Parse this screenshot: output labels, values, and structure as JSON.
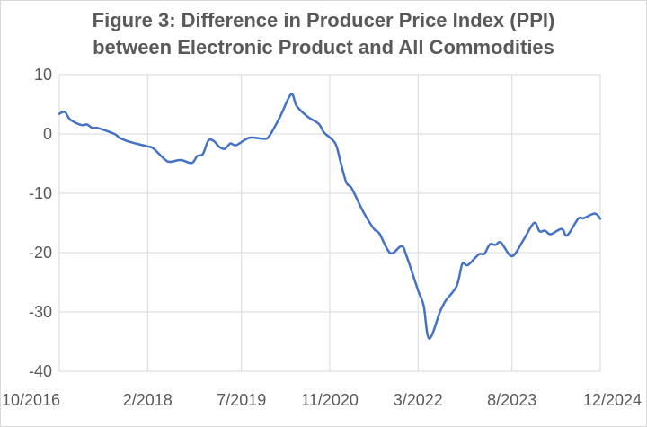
{
  "chart_data": {
    "type": "line",
    "title_lines": [
      "Figure 3: Difference in Producer Price Index (PPI)",
      "between Electronic Product and All Commodities"
    ],
    "xlabel": "",
    "ylabel": "",
    "ylim": [
      -40,
      10
    ],
    "yticks": [
      10,
      0,
      -10,
      -20,
      -30,
      -40
    ],
    "xticks": [
      {
        "date": "2016-10",
        "label": "10/2016"
      },
      {
        "date": "2018-02",
        "label": "2/2018"
      },
      {
        "date": "2019-07",
        "label": "7/2019"
      },
      {
        "date": "2020-11",
        "label": "11/2020"
      },
      {
        "date": "2022-03",
        "label": "3/2022"
      },
      {
        "date": "2023-08",
        "label": "8/2023"
      },
      {
        "date": "2024-12",
        "label": "12/2024"
      }
    ],
    "xlim": [
      "2016-10",
      "2024-12"
    ],
    "grid": true,
    "legend": "none",
    "line_color": "#4472C4",
    "series": [
      {
        "x": [
          "2016-10",
          "2016-11",
          "2016-12",
          "2017-02",
          "2017-03",
          "2017-04",
          "2017-05",
          "2017-08",
          "2017-09",
          "2017-11",
          "2018-02",
          "2018-03",
          "2018-05",
          "2018-06",
          "2018-08",
          "2018-10",
          "2018-11",
          "2018-12",
          "2019-01",
          "2019-02",
          "2019-03",
          "2019-04",
          "2019-05",
          "2019-06",
          "2019-08",
          "2019-09",
          "2019-11",
          "2019-12",
          "2020-02",
          "2020-04",
          "2020-05",
          "2020-07",
          "2020-09",
          "2020-10",
          "2020-12",
          "2021-01",
          "2021-02",
          "2021-03",
          "2021-05",
          "2021-07",
          "2021-08",
          "2021-10",
          "2021-12",
          "2022-01",
          "2022-03",
          "2022-04",
          "2022-05",
          "2022-07",
          "2022-08",
          "2022-10",
          "2022-11",
          "2022-12",
          "2023-02",
          "2023-03",
          "2023-04",
          "2023-05",
          "2023-06",
          "2023-08",
          "2023-10",
          "2023-12",
          "2024-01",
          "2024-02",
          "2024-03",
          "2024-05",
          "2024-06",
          "2024-08",
          "2024-09",
          "2024-11",
          "2024-12"
        ],
        "y": [
          3.4,
          3.7,
          2.4,
          1.5,
          1.6,
          1.0,
          1.0,
          0.0,
          -0.7,
          -1.4,
          -2.1,
          -2.4,
          -4.2,
          -4.7,
          -4.4,
          -4.9,
          -3.7,
          -3.4,
          -1.1,
          -1.2,
          -2.2,
          -2.5,
          -1.6,
          -1.9,
          -0.8,
          -0.6,
          -0.8,
          -0.4,
          2.9,
          6.7,
          4.7,
          2.9,
          1.7,
          0.2,
          -1.6,
          -4.9,
          -8.2,
          -9.2,
          -13.0,
          -16.0,
          -16.8,
          -20.1,
          -18.9,
          -20.8,
          -26.4,
          -28.9,
          -34.5,
          -29.9,
          -28.1,
          -25.6,
          -21.9,
          -22.1,
          -20.3,
          -20.2,
          -18.6,
          -18.7,
          -18.3,
          -20.6,
          -18.0,
          -15.0,
          -16.4,
          -16.3,
          -16.9,
          -16.0,
          -17.1,
          -14.3,
          -14.2,
          -13.4,
          -14.3
        ]
      }
    ]
  }
}
